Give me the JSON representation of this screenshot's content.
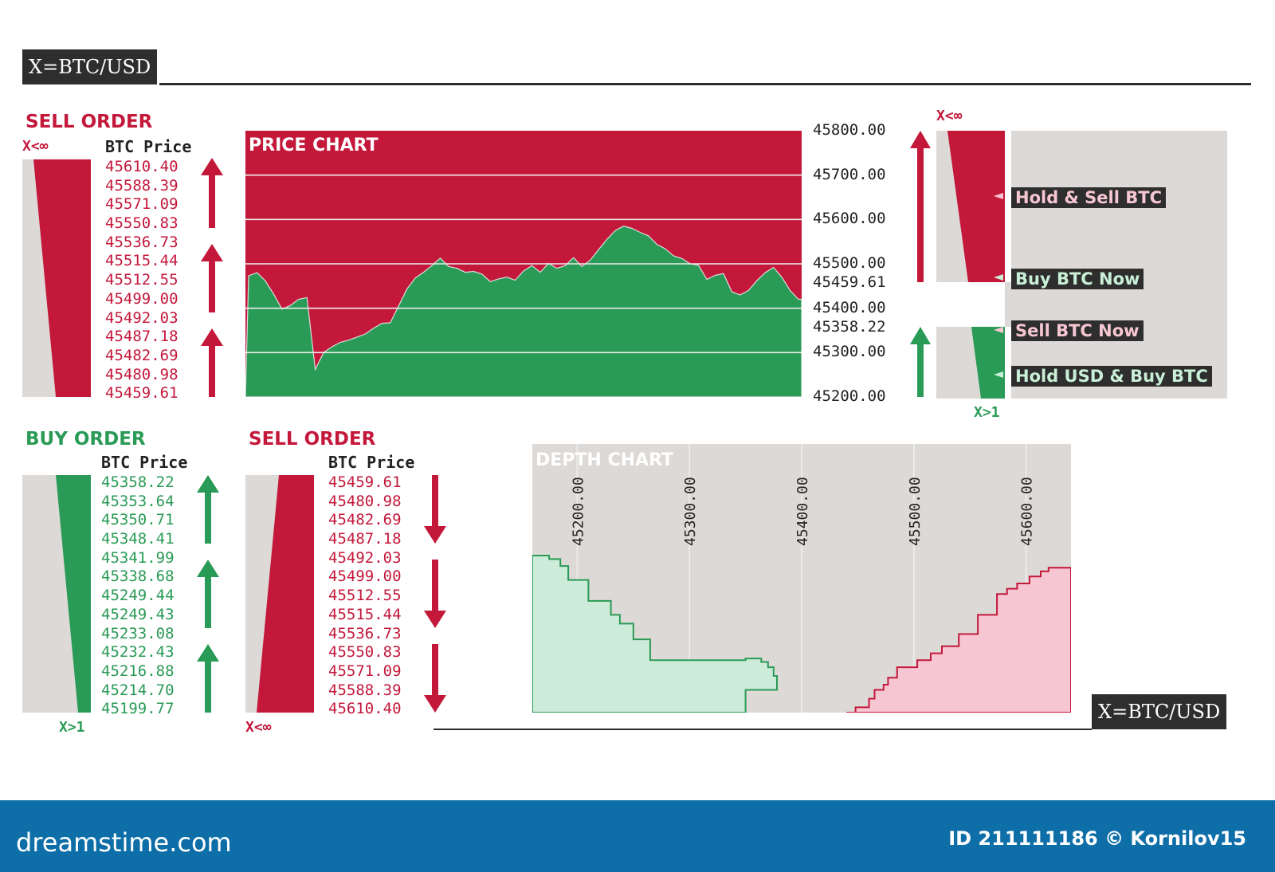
{
  "pair_label_top": "X=BTC/USD",
  "pair_label_bottom": "X=BTC/USD",
  "colors": {
    "sell": "#c4183b",
    "buy": "#2a9b56",
    "panel_gray": "#ddd9d6",
    "depth_buy_fill": "#cdebd9",
    "depth_sell_fill": "#f6c6d3"
  },
  "sell_order_top": {
    "title": "SELL ORDER",
    "x_label": "X<∞",
    "column_header": "BTC Price",
    "prices": [
      "45610.40",
      "45588.39",
      "45571.09",
      "45550.83",
      "45536.73",
      "45515.44",
      "45512.55",
      "45499.00",
      "45492.03",
      "45487.18",
      "45482.69",
      "45480.98",
      "45459.61"
    ]
  },
  "buy_order": {
    "title": "BUY ORDER",
    "x_label": "X>1",
    "column_header": "BTC Price",
    "prices": [
      "45358.22",
      "45353.64",
      "45350.71",
      "45348.41",
      "45341.99",
      "45338.68",
      "45249.44",
      "45249.43",
      "45233.08",
      "45232.43",
      "45216.88",
      "45214.70",
      "45199.77"
    ]
  },
  "sell_order_bottom": {
    "title": "SELL ORDER",
    "x_label": "X<∞",
    "column_header": "BTC Price",
    "prices": [
      "45459.61",
      "45480.98",
      "45482.69",
      "45487.18",
      "45492.03",
      "45499.00",
      "45512.55",
      "45515.44",
      "45536.73",
      "45550.83",
      "45571.09",
      "45588.39",
      "45610.40"
    ]
  },
  "signals": {
    "top_x_label": "X<∞",
    "bottom_x_label": "X>1",
    "hold_sell": "Hold & Sell BTC",
    "buy_now": "Buy BTC Now",
    "sell_now": "Sell BTC Now",
    "hold_usd_prefix": "Hold ",
    "hold_usd_sc": "USD",
    "hold_usd_suffix": " & Buy BTC"
  },
  "chart_data": [
    {
      "type": "area",
      "title": "PRICE CHART",
      "ylim": [
        45200,
        45800
      ],
      "y_ticks": [
        "45800.00",
        "45700.00",
        "45600.00",
        "45500.00",
        "45400.00",
        "45300.00",
        "45200.00"
      ],
      "current_sell_price": "45459.61",
      "current_buy_price": "45358.22",
      "grid": true,
      "series": [
        {
          "values": [
            45473,
            45480,
            45462,
            45432,
            45398,
            45406,
            45420,
            45424,
            45262,
            45300,
            45313,
            45323,
            45328,
            45335,
            45342,
            45355,
            45366,
            45367,
            45405,
            45443,
            45468,
            45481,
            45496,
            45513,
            45494,
            45490,
            45481,
            45483,
            45477,
            45460,
            45466,
            45470,
            45463,
            45484,
            45496,
            45481,
            45501,
            45490,
            45496,
            45514,
            45494,
            45508,
            45532,
            45555,
            45575,
            45585,
            45580,
            45571,
            45563,
            45544,
            45534,
            45518,
            45512,
            45500,
            45497,
            45465,
            45474,
            45478,
            45437,
            45430,
            45440,
            45462,
            45480,
            45492,
            45470,
            45440,
            45420
          ]
        }
      ]
    },
    {
      "type": "area",
      "title": "DEPTH CHART",
      "x_ticks": [
        "45200.00",
        "45300.00",
        "45400.00",
        "45500.00",
        "45600.00"
      ],
      "xlim": [
        45160,
        45640
      ],
      "grid": true,
      "series": [
        {
          "points": [
            [
              45160,
              0.9
            ],
            [
              45175,
              0.9
            ],
            [
              45175,
              0.88
            ],
            [
              45185,
              0.88
            ],
            [
              45185,
              0.84
            ],
            [
              45192,
              0.84
            ],
            [
              45192,
              0.76
            ],
            [
              45210,
              0.76
            ],
            [
              45210,
              0.64
            ],
            [
              45230,
              0.64
            ],
            [
              45230,
              0.56
            ],
            [
              45238,
              0.56
            ],
            [
              45238,
              0.51
            ],
            [
              45250,
              0.51
            ],
            [
              45250,
              0.42
            ],
            [
              45265,
              0.42
            ],
            [
              45265,
              0.3
            ],
            [
              45350,
              0.3
            ],
            [
              45350,
              0.31
            ],
            [
              45364,
              0.31
            ],
            [
              45364,
              0.29
            ],
            [
              45370,
              0.29
            ],
            [
              45370,
              0.26
            ],
            [
              45375,
              0.26
            ],
            [
              45375,
              0.21
            ],
            [
              45378,
              0.21
            ],
            [
              45378,
              0.13
            ],
            [
              45350,
              0.13
            ],
            [
              45350,
              0.0
            ],
            [
              45160,
              0.0
            ]
          ]
        },
        {
          "points": [
            [
              45440,
              0.0
            ],
            [
              45448,
              0.0
            ],
            [
              45448,
              0.03
            ],
            [
              45460,
              0.03
            ],
            [
              45460,
              0.08
            ],
            [
              45465,
              0.08
            ],
            [
              45465,
              0.13
            ],
            [
              45473,
              0.13
            ],
            [
              45473,
              0.16
            ],
            [
              45477,
              0.16
            ],
            [
              45477,
              0.2
            ],
            [
              45485,
              0.2
            ],
            [
              45485,
              0.26
            ],
            [
              45503,
              0.26
            ],
            [
              45503,
              0.3
            ],
            [
              45515,
              0.3
            ],
            [
              45515,
              0.34
            ],
            [
              45525,
              0.34
            ],
            [
              45525,
              0.38
            ],
            [
              45540,
              0.38
            ],
            [
              45540,
              0.45
            ],
            [
              45557,
              0.45
            ],
            [
              45557,
              0.56
            ],
            [
              45574,
              0.56
            ],
            [
              45574,
              0.68
            ],
            [
              45583,
              0.68
            ],
            [
              45583,
              0.71
            ],
            [
              45592,
              0.71
            ],
            [
              45592,
              0.74
            ],
            [
              45603,
              0.74
            ],
            [
              45603,
              0.78
            ],
            [
              45613,
              0.78
            ],
            [
              45613,
              0.81
            ],
            [
              45620,
              0.81
            ],
            [
              45620,
              0.83
            ],
            [
              45640,
              0.83
            ],
            [
              45640,
              0.0
            ]
          ]
        }
      ]
    }
  ]
}
